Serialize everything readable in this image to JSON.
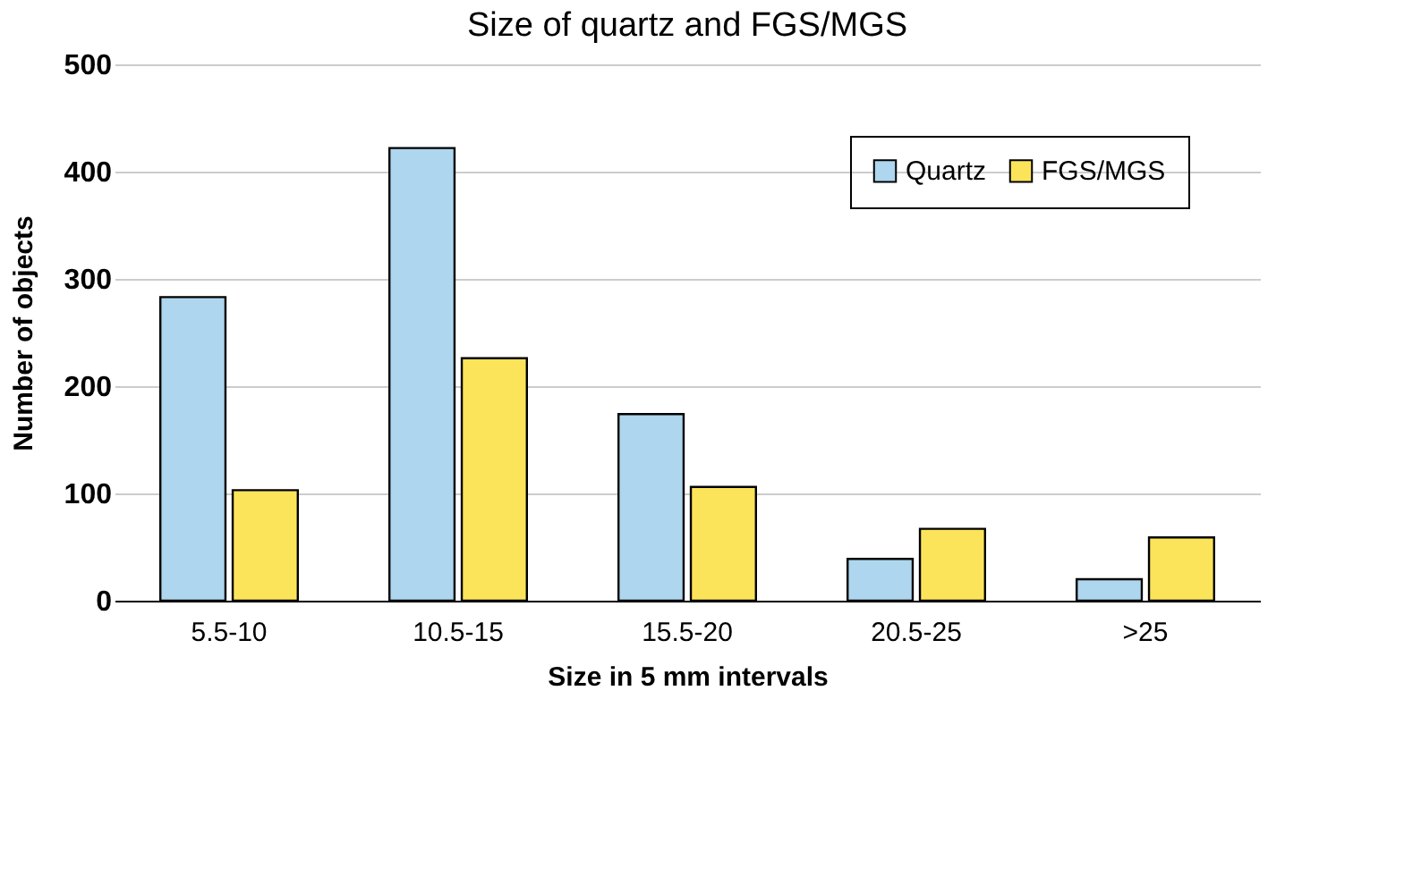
{
  "chart_data": {
    "type": "bar",
    "title": "Size of quartz and FGS/MGS",
    "xlabel": "Size in 5 mm intervals",
    "ylabel": "Number of objects",
    "categories": [
      "5.5-10",
      "10.5-15",
      "15.5-20",
      "20.5-25",
      ">25"
    ],
    "series": [
      {
        "name": "Quartz",
        "color": "#aed6ee",
        "values": [
          283,
          422,
          174,
          39,
          20
        ]
      },
      {
        "name": "FGS/MGS",
        "color": "#fce45a",
        "values": [
          103,
          226,
          106,
          67,
          59
        ]
      }
    ],
    "ylim": [
      0,
      500
    ],
    "yticks": [
      0,
      100,
      200,
      300,
      400,
      500
    ],
    "grid": "y",
    "legend": "top right"
  }
}
